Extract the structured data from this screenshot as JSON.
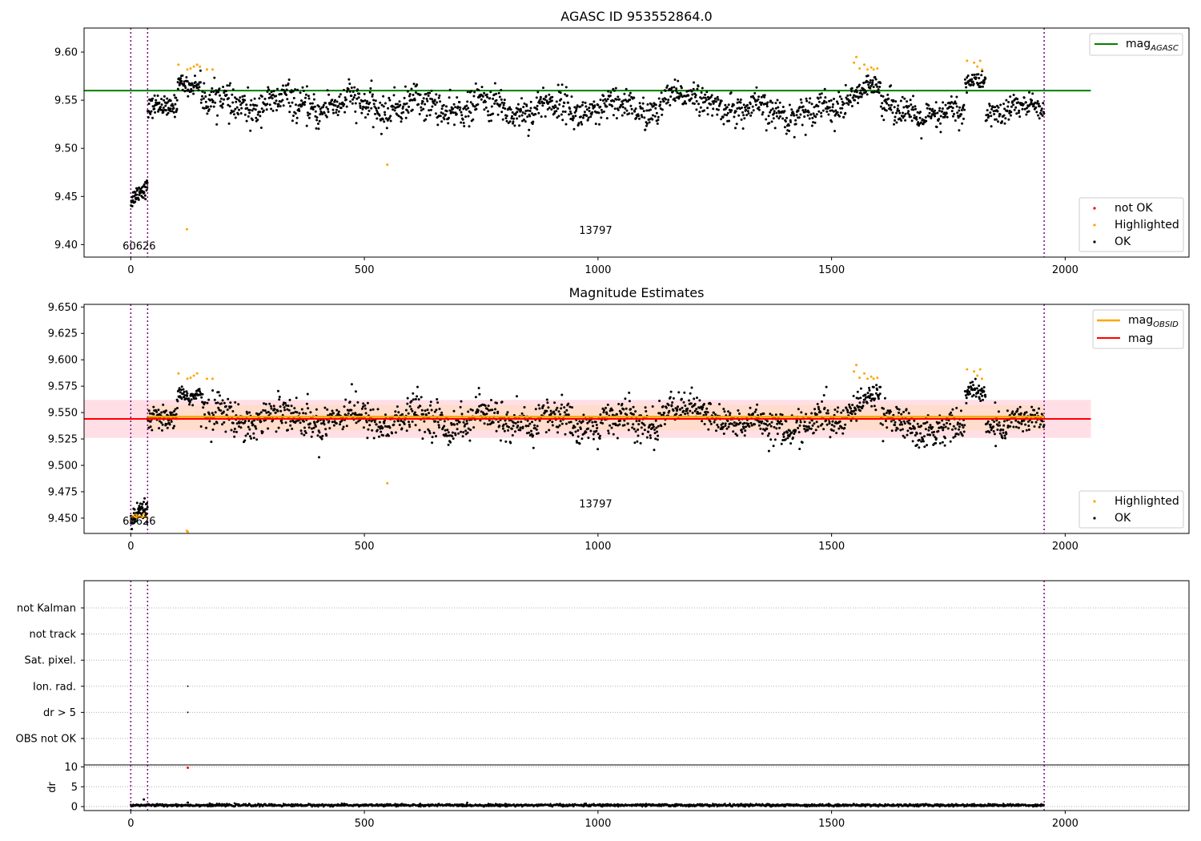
{
  "chart_data": [
    {
      "type": "scatter",
      "title": "AGASC ID 953552864.0",
      "xlim": [
        -100,
        2265
      ],
      "ylim": [
        9.387,
        9.625
      ],
      "x_ticks": [
        0,
        500,
        1000,
        1500,
        2000
      ],
      "y_ticks": [
        9.4,
        9.45,
        9.5,
        9.55,
        9.6
      ],
      "y_tick_labels": [
        "9.40",
        "9.45",
        "9.50",
        "9.55",
        "9.60"
      ],
      "vlines": [
        0,
        36,
        1955
      ],
      "hlines": [
        {
          "name": "mag_AGASC",
          "y": 9.56,
          "x_range": [
            -100,
            2055
          ],
          "color": "#008000"
        }
      ],
      "annotations": [
        {
          "text": "60626",
          "x": 18,
          "y": 9.395
        },
        {
          "text": "13797",
          "x": 995,
          "y": 9.411
        }
      ],
      "legend_lines": [
        {
          "label": "mag",
          "sub": "AGASC",
          "color": "#008000"
        }
      ],
      "legend_points": [
        {
          "label": "not OK",
          "color": "#ff0000"
        },
        {
          "label": "Highlighted",
          "color": "#ffa500"
        },
        {
          "label": "OK",
          "color": "#000000"
        }
      ],
      "segments": [
        {
          "x": [
            0,
            36
          ],
          "base": [
            9.445,
            9.458
          ],
          "noise": 0.006,
          "count": 60
        },
        {
          "x": [
            36,
            100
          ],
          "base": [
            9.538,
            9.548
          ],
          "noise": 0.007,
          "count": 80
        },
        {
          "x": [
            100,
            150
          ],
          "base": [
            9.572,
            9.565
          ],
          "noise": 0.006,
          "count": 60
        },
        {
          "x": [
            150,
            1130
          ],
          "base": [
            9.547,
            9.54
          ],
          "noise": 0.011,
          "count": 950
        },
        {
          "x": [
            1130,
            1290
          ],
          "base": [
            9.554,
            9.546
          ],
          "noise": 0.009,
          "count": 150
        },
        {
          "x": [
            1290,
            1530
          ],
          "base": [
            9.537,
            9.54
          ],
          "noise": 0.01,
          "count": 230
        },
        {
          "x": [
            1530,
            1605
          ],
          "base": [
            9.555,
            9.57
          ],
          "noise": 0.008,
          "count": 80
        },
        {
          "x": [
            1605,
            1785
          ],
          "base": [
            9.54,
            9.533
          ],
          "noise": 0.01,
          "count": 180
        },
        {
          "x": [
            1785,
            1830
          ],
          "base": [
            9.565,
            9.575
          ],
          "noise": 0.006,
          "count": 50
        },
        {
          "x": [
            1830,
            1955
          ],
          "base": [
            9.54,
            9.54
          ],
          "noise": 0.009,
          "count": 120
        }
      ],
      "highlighted": [
        {
          "x": 102,
          "y": 9.587
        },
        {
          "x": 120,
          "y": 9.416
        },
        {
          "x": 121,
          "y": 9.582
        },
        {
          "x": 128,
          "y": 9.583
        },
        {
          "x": 135,
          "y": 9.585
        },
        {
          "x": 142,
          "y": 9.587
        },
        {
          "x": 148,
          "y": 9.585
        },
        {
          "x": 163,
          "y": 9.582
        },
        {
          "x": 175,
          "y": 9.582
        },
        {
          "x": 549,
          "y": 9.483
        },
        {
          "x": 1548,
          "y": 9.589
        },
        {
          "x": 1553,
          "y": 9.595
        },
        {
          "x": 1560,
          "y": 9.583
        },
        {
          "x": 1570,
          "y": 9.587
        },
        {
          "x": 1577,
          "y": 9.582
        },
        {
          "x": 1585,
          "y": 9.584
        },
        {
          "x": 1590,
          "y": 9.582
        },
        {
          "x": 1598,
          "y": 9.583
        },
        {
          "x": 1790,
          "y": 9.591
        },
        {
          "x": 1805,
          "y": 9.589
        },
        {
          "x": 1812,
          "y": 9.585
        },
        {
          "x": 1818,
          "y": 9.591
        },
        {
          "x": 1822,
          "y": 9.582
        }
      ]
    },
    {
      "type": "scatter",
      "title": "Magnitude Estimates",
      "xlim": [
        -100,
        2265
      ],
      "ylim": [
        9.4355,
        9.6525
      ],
      "x_ticks": [
        0,
        500,
        1000,
        1500,
        2000
      ],
      "y_ticks": [
        9.45,
        9.475,
        9.5,
        9.525,
        9.55,
        9.575,
        9.6,
        9.625,
        9.65
      ],
      "y_tick_labels": [
        "9.450",
        "9.475",
        "9.500",
        "9.525",
        "9.550",
        "9.575",
        "9.600",
        "9.625",
        "9.650"
      ],
      "vlines": [
        0,
        36,
        1955
      ],
      "bands": [
        {
          "x_range": [
            -100,
            2055
          ],
          "y_range": [
            9.526,
            9.562
          ],
          "color": "#ffc0cb",
          "opacity": 0.5
        },
        {
          "x_range": [
            36,
            1955
          ],
          "y_range": [
            9.533,
            9.557
          ],
          "color": "#ffdab9",
          "opacity": 0.6
        }
      ],
      "hlines": [
        {
          "name": "mag",
          "y": 9.544,
          "x_range": [
            -100,
            2055
          ],
          "color": "#ff0000"
        },
        {
          "name": "mag_OBSID",
          "y": 9.546,
          "x_range": [
            36,
            1955
          ],
          "color": "#ffa500"
        },
        {
          "name": "mag_OBSID_first",
          "y": 9.451,
          "x_range": [
            0,
            36
          ],
          "color": "#ffa500"
        }
      ],
      "annotations": [
        {
          "text": "60626",
          "x": 18,
          "y": 9.444
        },
        {
          "text": "13797",
          "x": 995,
          "y": 9.46
        }
      ],
      "legend_lines": [
        {
          "label": "mag",
          "sub": "OBSID",
          "color": "#ffa500"
        },
        {
          "label": "mag",
          "sub": "",
          "color": "#ff0000"
        }
      ],
      "legend_points": [
        {
          "label": "Highlighted",
          "color": "#ffa500"
        },
        {
          "label": "OK",
          "color": "#000000"
        }
      ],
      "segments": [
        {
          "x": [
            0,
            36
          ],
          "base": [
            9.445,
            9.458
          ],
          "noise": 0.006,
          "count": 60
        },
        {
          "x": [
            36,
            100
          ],
          "base": [
            9.538,
            9.548
          ],
          "noise": 0.007,
          "count": 80
        },
        {
          "x": [
            100,
            150
          ],
          "base": [
            9.572,
            9.565
          ],
          "noise": 0.006,
          "count": 60
        },
        {
          "x": [
            150,
            1130
          ],
          "base": [
            9.547,
            9.54
          ],
          "noise": 0.011,
          "count": 950
        },
        {
          "x": [
            1130,
            1290
          ],
          "base": [
            9.554,
            9.546
          ],
          "noise": 0.009,
          "count": 150
        },
        {
          "x": [
            1290,
            1530
          ],
          "base": [
            9.537,
            9.54
          ],
          "noise": 0.01,
          "count": 230
        },
        {
          "x": [
            1530,
            1605
          ],
          "base": [
            9.555,
            9.57
          ],
          "noise": 0.008,
          "count": 80
        },
        {
          "x": [
            1605,
            1785
          ],
          "base": [
            9.54,
            9.533
          ],
          "noise": 0.01,
          "count": 180
        },
        {
          "x": [
            1785,
            1830
          ],
          "base": [
            9.565,
            9.575
          ],
          "noise": 0.006,
          "count": 50
        },
        {
          "x": [
            1830,
            1955
          ],
          "base": [
            9.54,
            9.54
          ],
          "noise": 0.009,
          "count": 120
        }
      ],
      "highlighted": [
        {
          "x": 102,
          "y": 9.587
        },
        {
          "x": 120,
          "y": 9.438
        },
        {
          "x": 122,
          "y": 9.437
        },
        {
          "x": 121,
          "y": 9.582
        },
        {
          "x": 128,
          "y": 9.583
        },
        {
          "x": 135,
          "y": 9.585
        },
        {
          "x": 142,
          "y": 9.587
        },
        {
          "x": 163,
          "y": 9.582
        },
        {
          "x": 175,
          "y": 9.582
        },
        {
          "x": 549,
          "y": 9.483
        },
        {
          "x": 1548,
          "y": 9.589
        },
        {
          "x": 1553,
          "y": 9.595
        },
        {
          "x": 1560,
          "y": 9.583
        },
        {
          "x": 1570,
          "y": 9.587
        },
        {
          "x": 1577,
          "y": 9.582
        },
        {
          "x": 1585,
          "y": 9.584
        },
        {
          "x": 1590,
          "y": 9.582
        },
        {
          "x": 1598,
          "y": 9.583
        },
        {
          "x": 1790,
          "y": 9.591
        },
        {
          "x": 1805,
          "y": 9.589
        },
        {
          "x": 1812,
          "y": 9.585
        },
        {
          "x": 1818,
          "y": 9.591
        },
        {
          "x": 1822,
          "y": 9.582
        },
        {
          "x": 5,
          "y": 9.452
        },
        {
          "x": 12,
          "y": 9.453
        },
        {
          "x": 20,
          "y": 9.452
        },
        {
          "x": 28,
          "y": 9.454
        }
      ]
    },
    {
      "type": "scatter",
      "title": "",
      "xlim": [
        -100,
        2265
      ],
      "categories": [
        "not Kalman",
        "not track",
        "Sat. pixel.",
        "Ion. rad.",
        "dr > 5",
        "OBS not OK"
      ],
      "vlines": [
        0,
        36,
        1955
      ],
      "flag_points": [
        {
          "x": 122,
          "category": "Ion. rad."
        },
        {
          "x": 122,
          "category": "dr > 5"
        }
      ],
      "grid": true
    },
    {
      "type": "scatter",
      "title": "",
      "xlim": [
        -100,
        2265
      ],
      "ylim": [
        -1,
        10.5
      ],
      "ylabel": "dr",
      "x_ticks": [
        0,
        500,
        1000,
        1500,
        2000
      ],
      "y_ticks": [
        0,
        5,
        10
      ],
      "y_tick_labels": [
        "0",
        "5",
        "10"
      ],
      "vlines": [
        0,
        36,
        1955
      ],
      "base_level": 0.35,
      "noise": 0.15,
      "count": 1900,
      "x_range": [
        0,
        1955
      ],
      "outliers": [
        {
          "x": 122,
          "y": 9.8,
          "color": "#ff0000"
        },
        {
          "x": 122,
          "y": 1.0,
          "color": "#000000"
        },
        {
          "x": 28,
          "y": 1.8,
          "color": "#000000"
        }
      ]
    }
  ]
}
